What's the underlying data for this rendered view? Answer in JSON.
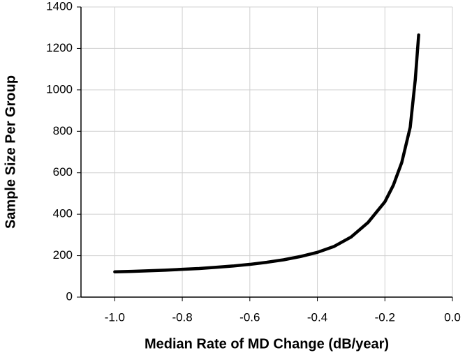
{
  "chart_data": {
    "type": "line",
    "x_label": "Median Rate of MD Change (dB/year)",
    "y_label": "Sample Size Per Group",
    "x": [
      -1.0,
      -0.95,
      -0.9,
      -0.85,
      -0.8,
      -0.75,
      -0.7,
      -0.65,
      -0.6,
      -0.55,
      -0.5,
      -0.45,
      -0.4,
      -0.35,
      -0.3,
      -0.25,
      -0.2,
      -0.175,
      -0.15,
      -0.125,
      -0.11,
      -0.1
    ],
    "series": [
      {
        "name": "Sample size",
        "color": "#000000",
        "values": [
          122,
          124,
          127,
          130,
          134,
          138,
          144,
          150,
          158,
          168,
          180,
          196,
          216,
          245,
          290,
          360,
          460,
          540,
          650,
          820,
          1050,
          1265
        ]
      }
    ],
    "xlim": [
      -1.1,
      0.0
    ],
    "xticks": [
      {
        "value": -1.0,
        "label": "-1.0"
      },
      {
        "value": -0.8,
        "label": "-0.8"
      },
      {
        "value": -0.6,
        "label": "-0.6"
      },
      {
        "value": -0.4,
        "label": "-0.4"
      },
      {
        "value": -0.2,
        "label": "-0.2"
      },
      {
        "value": 0.0,
        "label": "0.0"
      }
    ],
    "ylim": [
      0,
      1400
    ],
    "yticks": [
      0,
      200,
      400,
      600,
      800,
      1000,
      1200,
      1400
    ],
    "grid": true
  }
}
